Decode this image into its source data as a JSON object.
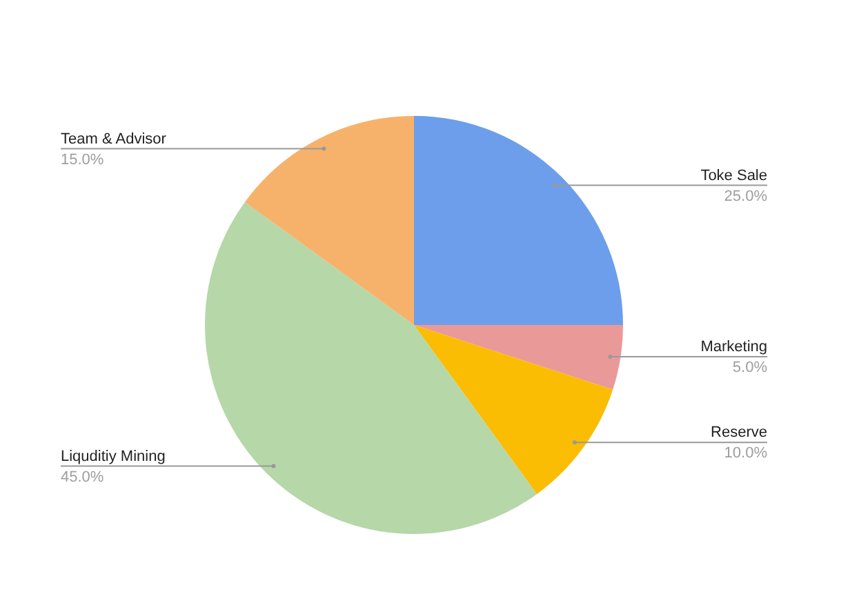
{
  "chart_data": {
    "type": "pie",
    "categories": [
      "Toke Sale",
      "Marketing",
      "Reserve",
      "Liquditiy Mining",
      "Team & Advisor"
    ],
    "values": [
      25,
      5,
      10,
      45,
      15
    ],
    "value_labels": [
      "25.0%",
      "5.0%",
      "10.0%",
      "45.0%",
      "15.0%"
    ],
    "colors": [
      "#6d9eeb",
      "#ea9999",
      "#fbbc04",
      "#b6d7a8",
      "#f6b26b"
    ],
    "legend": false
  }
}
